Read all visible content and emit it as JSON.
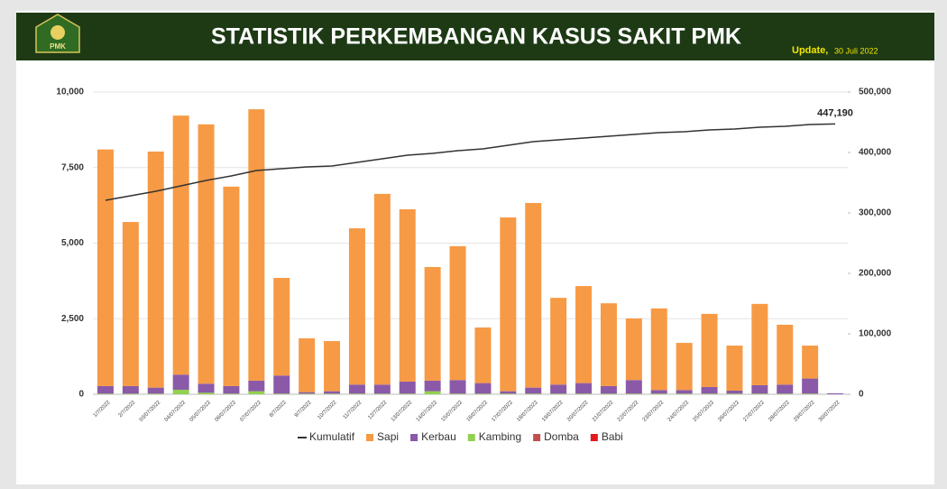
{
  "header": {
    "logo_text": "PMK",
    "update_label": "Update,",
    "update_date": "30 Juli 2022"
  },
  "chart_data": {
    "type": "bar",
    "title": "STATISTIK PERKEMBANGAN KASUS SAKIT PMK",
    "categories": [
      "1/7/2022",
      "2/7/2022",
      "03/07/2022",
      "04/07/2022",
      "05/07/2022",
      "06/07/2022",
      "07/07/2022",
      "8/7/2022",
      "9/7/2022",
      "10/7/2022",
      "11/7/2022",
      "12/7/2022",
      "13/07/2022",
      "14/07/2022",
      "15/07/2022",
      "16/07/2022",
      "17/07/2022",
      "18/07/2022",
      "19/07/2022",
      "20/07/2022",
      "21/07/2022",
      "22/07/2022",
      "23/07/2022",
      "24/07/2022",
      "25/07/2022",
      "26/07/2022",
      "27/07/2022",
      "28/07/2022",
      "29/07/2022",
      "30/07/2022"
    ],
    "series": [
      {
        "name": "Kumulatif",
        "type": "line",
        "axis": "y2",
        "color": "#333333",
        "values": [
          320900,
          328400,
          335800,
          344800,
          353700,
          361200,
          370100,
          373100,
          376100,
          377600,
          383600,
          389500,
          395500,
          398500,
          403000,
          406000,
          411900,
          417900,
          420900,
          423900,
          426900,
          429800,
          432800,
          434300,
          437300,
          438800,
          441800,
          443300,
          446300,
          447190
        ],
        "value_labels": [
          null,
          null,
          null,
          null,
          null,
          null,
          null,
          null,
          null,
          null,
          null,
          null,
          null,
          null,
          null,
          null,
          null,
          null,
          null,
          null,
          null,
          null,
          null,
          null,
          null,
          null,
          null,
          null,
          null,
          "447,190"
        ]
      },
      {
        "name": "Sapi",
        "color": "#f79a45",
        "values": [
          7830,
          5430,
          7810,
          8570,
          8580,
          6600,
          8980,
          3230,
          1780,
          1660,
          5170,
          6310,
          5700,
          3760,
          4430,
          1840,
          5750,
          6110,
          2870,
          3210,
          2740,
          2040,
          2700,
          1560,
          2420,
          1490,
          2690,
          1980,
          1090,
          0
        ]
      },
      {
        "name": "Kerbau",
        "color": "#8a5aa8",
        "values": [
          250,
          250,
          200,
          500,
          300,
          250,
          350,
          600,
          50,
          80,
          300,
          300,
          400,
          350,
          450,
          350,
          80,
          200,
          300,
          350,
          250,
          450,
          120,
          120,
          220,
          100,
          280,
          300,
          500,
          30
        ]
      },
      {
        "name": "Kambing",
        "color": "#92d050",
        "values": [
          20,
          20,
          20,
          150,
          50,
          20,
          100,
          20,
          20,
          20,
          20,
          20,
          20,
          100,
          20,
          20,
          20,
          20,
          20,
          20,
          20,
          20,
          20,
          20,
          20,
          20,
          20,
          20,
          20,
          0
        ]
      },
      {
        "name": "Domba",
        "color": "#c0504d",
        "values": [
          0,
          0,
          0,
          0,
          0,
          0,
          0,
          0,
          0,
          0,
          0,
          0,
          0,
          0,
          0,
          0,
          0,
          0,
          0,
          0,
          0,
          0,
          0,
          0,
          0,
          0,
          0,
          0,
          0,
          0
        ]
      },
      {
        "name": "Babi",
        "color": "#e31a1c",
        "values": [
          0,
          0,
          0,
          0,
          0,
          0,
          0,
          0,
          0,
          0,
          0,
          0,
          0,
          0,
          0,
          0,
          0,
          0,
          0,
          0,
          0,
          0,
          0,
          0,
          0,
          0,
          0,
          0,
          0,
          0
        ]
      }
    ],
    "ylim": [
      0,
      10000
    ],
    "yticks": [
      0,
      {
        "value": 2500,
        "label": "2,500"
      },
      {
        "value": 5000,
        "label": "5,000"
      },
      {
        "value": 7500,
        "label": "7,500"
      },
      {
        "value": 10000,
        "label": "10,000"
      }
    ],
    "y2lim": [
      0,
      500000
    ],
    "y2ticks": [
      0,
      {
        "value": 100000,
        "label": "100,000"
      },
      {
        "value": 200000,
        "label": "200,000"
      },
      {
        "value": 300000,
        "label": "300,000"
      },
      {
        "value": 400000,
        "label": "400,000"
      },
      {
        "value": 500000,
        "label": "500,000"
      }
    ],
    "grid": true,
    "legend": "bottom"
  }
}
